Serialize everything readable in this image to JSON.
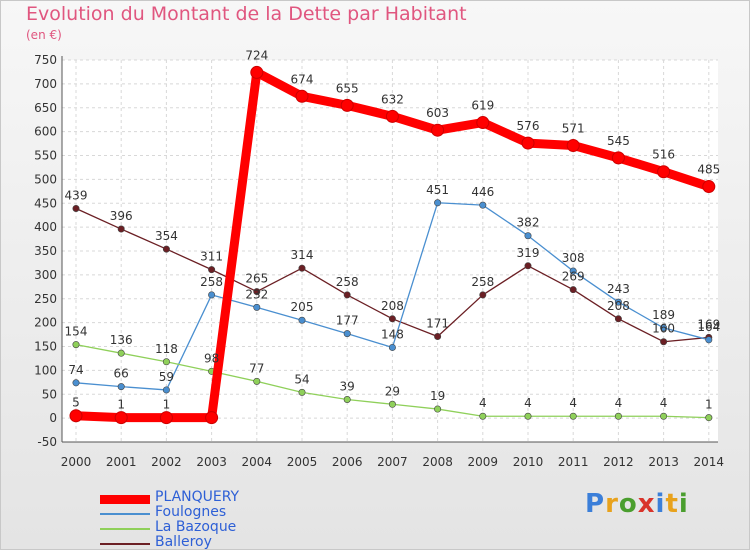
{
  "title": "Evolution du Montant de la Dette par Habitant",
  "subtitle": "(en €)",
  "logo": {
    "text": "Proxiti",
    "colors": [
      "#3b7fd9",
      "#e8a21c",
      "#4a9e2e",
      "#d9342b",
      "#3b7fd9",
      "#e8a21c",
      "#4a9e2e"
    ]
  },
  "chart_data": {
    "type": "line",
    "title": "Evolution du Montant de la Dette par Habitant",
    "subtitle": "(en €)",
    "x": [
      "2000",
      "2001",
      "2002",
      "2003",
      "2004",
      "2005",
      "2006",
      "2007",
      "2008",
      "2009",
      "2010",
      "2011",
      "2012",
      "2013",
      "2014"
    ],
    "ylim": [
      -50,
      750
    ],
    "yticks": [
      -50,
      0,
      50,
      100,
      150,
      200,
      250,
      300,
      350,
      400,
      450,
      500,
      550,
      600,
      650,
      700,
      750
    ],
    "grid": true,
    "legend_position": "bottom-left",
    "series": [
      {
        "name": "PLANQUERY",
        "color": "#ff0000",
        "labels": [
          "5",
          "1",
          "1",
          "",
          "724",
          "674",
          "655",
          "632",
          "603",
          "619",
          "576",
          "571",
          "545",
          "516",
          "485"
        ],
        "values": [
          5,
          1,
          1,
          1,
          724,
          674,
          655,
          632,
          603,
          619,
          576,
          571,
          545,
          516,
          485
        ]
      },
      {
        "name": "Foulognes",
        "color": "#4a8fd0",
        "labels": [
          "74",
          "66",
          "59",
          "258",
          "232",
          "205",
          "177",
          "148",
          "451",
          "446",
          "382",
          "308",
          "243",
          "189",
          "164"
        ],
        "values": [
          74,
          66,
          59,
          258,
          232,
          205,
          177,
          148,
          451,
          446,
          382,
          308,
          243,
          189,
          164
        ]
      },
      {
        "name": "La Bazoque",
        "color": "#8fd05a",
        "labels": [
          "154",
          "136",
          "118",
          "98",
          "77",
          "54",
          "39",
          "29",
          "19",
          "4",
          "4",
          "4",
          "4",
          "4",
          "1"
        ],
        "values": [
          154,
          136,
          118,
          98,
          77,
          54,
          39,
          29,
          19,
          4,
          4,
          4,
          4,
          4,
          1
        ]
      },
      {
        "name": "Balleroy",
        "color": "#6b1f24",
        "labels": [
          "439",
          "396",
          "354",
          "311",
          "265",
          "314",
          "258",
          "208",
          "171",
          "258",
          "319",
          "269",
          "208",
          "160",
          "169"
        ],
        "values": [
          439,
          396,
          354,
          311,
          265,
          314,
          258,
          208,
          171,
          258,
          319,
          269,
          208,
          160,
          169
        ]
      }
    ]
  }
}
